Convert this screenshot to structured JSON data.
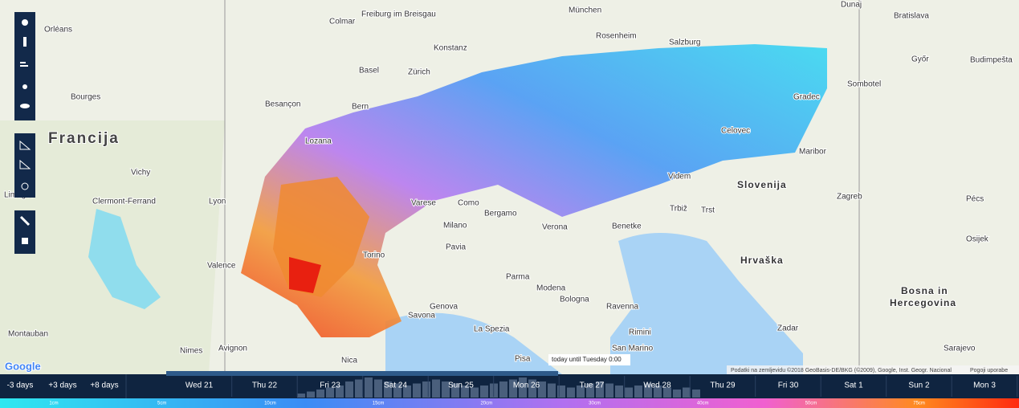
{
  "map": {
    "labels": {
      "country_fr": "Francija",
      "orleans": "Orléans",
      "bourges": "Bourges",
      "vichy": "Vichy",
      "clermont": "Clermont-Ferrand",
      "limoges": "Limoges",
      "lyon": "Lyon",
      "valence": "Valence",
      "besancon": "Besançon",
      "bern": "Bern",
      "zurich": "Zürich",
      "konstanz": "Konstanz",
      "freiburg": "Freiburg im Breisgau",
      "colmar": "Colmar",
      "basel": "Basel",
      "munchen": "München",
      "rosenheim": "Rosenheim",
      "salzburg": "Salzburg",
      "lozana": "Lozana",
      "milano": "Milano",
      "torino": "Torino",
      "genova": "Genova",
      "nica": "Nica",
      "bologna": "Bologna",
      "modena": "Modena",
      "parma": "Parma",
      "verona": "Verona",
      "benetke": "Benetke",
      "trst": "Trst",
      "zagreb": "Zagreb",
      "slovenija": "Slovenija",
      "hrvaska": "Hrvaška",
      "bosna1": "Bosna in",
      "bosna2": "Hercegovina",
      "sarajevo": "Sarajevo",
      "bratislava": "Bratislava",
      "dunaj": "Dunaj",
      "budimpesta": "Budimpešta",
      "gradec": "Gradec",
      "celovec": "Celovec",
      "maribor": "Maribor",
      "sanmarino": "San Marino",
      "rimini": "Rimini",
      "ravenna": "Ravenna",
      "pisa": "Pisa",
      "laspezia": "La Spezia",
      "savona": "Savona",
      "avignon": "Avignon",
      "nimes": "Nimes",
      "montauban": "Montauban",
      "pavia": "Pavia",
      "bergamo": "Bergamo",
      "como": "Como",
      "varese": "Varese",
      "sombotel": "Sombotel",
      "gyor": "Győr",
      "pecs": "Pécs",
      "osijek": "Osijek",
      "zadar": "Zadar",
      "videm": "Videm",
      "trbiz": "Trbiž"
    },
    "logo": "Google",
    "attribution": "Podatki na zemljevidu ©2018 GeoBasis-DE/BKG (©2009), Google, Inst. Geogr. Nacional",
    "terms": "Pogoji uporabe"
  },
  "tooltip": "today until Tuesday 0:00",
  "timeline": {
    "buttons": [
      "-3 days",
      "+3 days",
      "+8 days"
    ],
    "days": [
      "Wed 21",
      "Thu 22",
      "Fri 23",
      "Sat 24",
      "Sun 25",
      "Mon 26",
      "Tue 27",
      "Wed 28",
      "Thu 29",
      "Fri 30",
      "Sat 1",
      "Sun 2",
      "Mon 3"
    ],
    "histogram": [
      2,
      3,
      4,
      5,
      6,
      8,
      9,
      10,
      9,
      8,
      7,
      6,
      7,
      8,
      9,
      8,
      7,
      6,
      5,
      6,
      7,
      8,
      9,
      10,
      9,
      8,
      7,
      6,
      5,
      6,
      7,
      8,
      7,
      6,
      5,
      6,
      7,
      6,
      5,
      4,
      5,
      4
    ]
  },
  "legend": [
    "1cm",
    "5cm",
    "10cm",
    "15cm",
    "20cm",
    "30cm",
    "40cm",
    "50cm",
    "75cm"
  ]
}
